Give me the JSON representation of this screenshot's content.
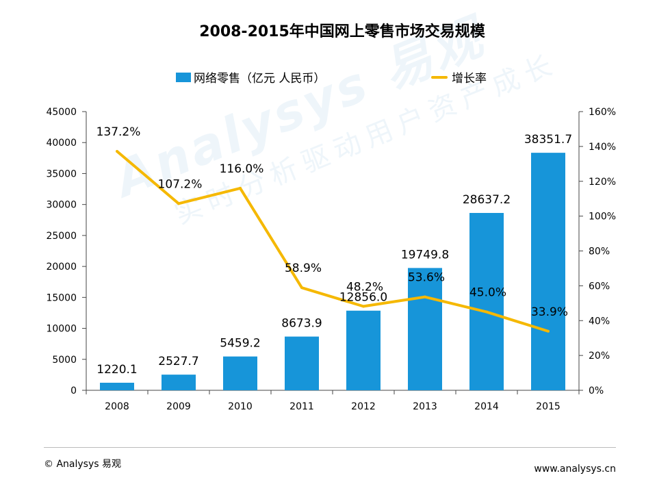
{
  "colors": {
    "bar": "#1795d9",
    "line": "#f5b800",
    "axis": "#444444"
  },
  "watermark": {
    "brand": "Analysys 易观",
    "slogan": "实时分析驱动用户资产成长"
  },
  "footer": {
    "copyright": "© Analysys 易观",
    "website": "www.analysys.cn"
  },
  "chart_data": {
    "type": "bar",
    "title": "2008-2015年中国网上零售市场交易规模",
    "categories": [
      "2008",
      "2009",
      "2010",
      "2011",
      "2012",
      "2013",
      "2014",
      "2015"
    ],
    "series": [
      {
        "name": "网络零售（亿元 人民币）",
        "type": "bar",
        "axis": "left",
        "values": [
          1220.1,
          2527.7,
          5459.2,
          8673.9,
          12856.0,
          19749.8,
          28637.2,
          38351.7
        ],
        "labels": [
          "1220.1",
          "2527.7",
          "5459.2",
          "8673.9",
          "12856.0",
          "19749.8",
          "28637.2",
          "38351.7"
        ]
      },
      {
        "name": "增长率",
        "type": "line",
        "axis": "right",
        "values": [
          137.2,
          107.2,
          116.0,
          58.9,
          48.2,
          53.6,
          45.0,
          33.9
        ],
        "labels": [
          "137.2%",
          "107.2%",
          "116.0%",
          "58.9%",
          "48.2%",
          "53.6%",
          "45.0%",
          "33.9%"
        ]
      }
    ],
    "y_left": {
      "min": 0,
      "max": 45000,
      "ticks": [
        "0",
        "5000",
        "10000",
        "15000",
        "20000",
        "25000",
        "30000",
        "35000",
        "40000",
        "45000"
      ]
    },
    "y_right": {
      "min": 0,
      "max": 160,
      "ticks": [
        "0%",
        "20%",
        "40%",
        "60%",
        "80%",
        "100%",
        "120%",
        "140%",
        "160%"
      ]
    },
    "legend_position": "top-center",
    "grid": false
  }
}
